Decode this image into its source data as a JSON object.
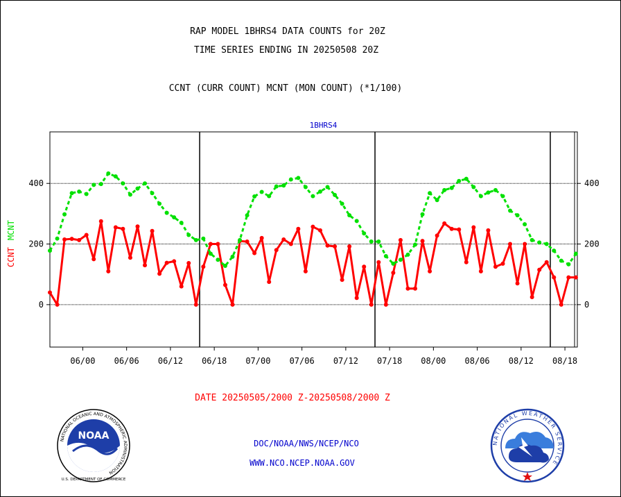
{
  "header": {
    "title_line1": "RAP MODEL 1BHRS4 DATA COUNTS for 20Z",
    "title_line2": "TIME SERIES ENDING IN 20250508 20Z",
    "subtitle": "CCNT (CURR COUNT) MCNT (MON COUNT) (*1/100)"
  },
  "footer": {
    "date_range": "DATE 20250505/2000 Z-20250508/2000 Z",
    "agency": "DOC/NOAA/NWS/NCEP/NCO",
    "website": "WWW.NCO.NCEP.NOAA.GOV"
  },
  "logos": {
    "noaa_text": "NOAA",
    "noaa_ring_text": "NATIONAL OCEANIC AND ATMOSPHERIC ADMINISTRATION",
    "noaa_bottom_text": "U.S. DEPARTMENT OF COMMERCE",
    "nws_ring_text": "NATIONAL WEATHER SERVICE"
  },
  "colors": {
    "ccnt": "#ff0000",
    "mcnt": "#00e000",
    "panel_title": "#0000cc",
    "footer_link": "#0000cc",
    "date_text": "#ff0000"
  },
  "chart_data": {
    "type": "line",
    "title": "1BHRS4",
    "ylabel_left_ccnt": "CCNT",
    "ylabel_left_mcnt": "MCNT",
    "ylim": [
      -140,
      570
    ],
    "yticks": [
      0,
      200,
      400
    ],
    "grid": "dotted horizontal at y ticks",
    "x_tick_labels": [
      "06/00",
      "06/06",
      "06/12",
      "06/18",
      "07/00",
      "07/06",
      "07/12",
      "07/18",
      "08/00",
      "08/06",
      "08/12",
      "08/18"
    ],
    "x_tick_hours": [
      28,
      34,
      40,
      46,
      52,
      58,
      64,
      70,
      76,
      82,
      88,
      94
    ],
    "xlim": [
      23.5,
      95.7
    ],
    "day_boundary_hours": [
      44,
      68,
      92
    ],
    "series": [
      {
        "name": "CCNT",
        "style": "solid",
        "x": [
          23.5,
          24.5,
          25.5,
          26.5,
          27.5,
          28.5,
          29.5,
          30.5,
          31.5,
          32.5,
          33.5,
          34.5,
          35.5,
          36.5,
          37.5,
          38.5,
          39.5,
          40.5,
          41.5,
          42.5,
          43.5,
          44.5,
          45.5,
          46.5,
          47.5,
          48.5,
          49.5,
          50.5,
          51.5,
          52.5,
          53.5,
          54.5,
          55.5,
          56.5,
          57.5,
          58.5,
          59.5,
          60.5,
          61.5,
          62.5,
          63.5,
          64.5,
          65.5,
          66.5,
          67.5,
          68.5,
          69.5,
          70.5,
          71.5,
          72.5,
          73.5,
          74.5,
          75.5,
          76.5,
          77.5,
          78.5,
          79.5,
          80.5,
          81.5,
          82.5,
          83.5,
          84.5,
          85.5,
          86.5,
          87.5,
          88.5,
          89.5,
          90.5,
          91.5,
          92.5,
          93.5,
          94.5,
          95.5
        ],
        "values": [
          40,
          0,
          215,
          217,
          213,
          230,
          150,
          275,
          110,
          255,
          250,
          155,
          258,
          130,
          243,
          102,
          138,
          143,
          60,
          137,
          0,
          125,
          200,
          200,
          65,
          0,
          210,
          208,
          170,
          220,
          75,
          180,
          215,
          200,
          250,
          110,
          257,
          245,
          195,
          192,
          82,
          192,
          22,
          125,
          0,
          140,
          0,
          105,
          213,
          53,
          53,
          210,
          110,
          228,
          268,
          250,
          248,
          140,
          255,
          110,
          245,
          125,
          135,
          200,
          70,
          200,
          25,
          115,
          140,
          90,
          0,
          90,
          90
        ]
      },
      {
        "name": "MCNT",
        "style": "dashed",
        "x": [
          23.5,
          24.5,
          25.5,
          26.5,
          27.5,
          28.5,
          29.5,
          30.5,
          31.5,
          32.5,
          33.5,
          34.5,
          35.5,
          36.5,
          37.5,
          38.5,
          39.5,
          40.5,
          41.5,
          42.5,
          43.5,
          44.5,
          45.5,
          46.5,
          47.5,
          48.5,
          49.5,
          50.5,
          51.5,
          52.5,
          53.5,
          54.5,
          55.5,
          56.5,
          57.5,
          58.5,
          59.5,
          60.5,
          61.5,
          62.5,
          63.5,
          64.5,
          65.5,
          66.5,
          67.5,
          68.5,
          69.5,
          70.5,
          71.5,
          72.5,
          73.5,
          74.5,
          75.5,
          76.5,
          77.5,
          78.5,
          79.5,
          80.5,
          81.5,
          82.5,
          83.5,
          84.5,
          85.5,
          86.5,
          87.5,
          88.5,
          89.5,
          90.5,
          91.5,
          92.5,
          93.5,
          94.5,
          95.5
        ],
        "values": [
          178,
          218,
          298,
          368,
          373,
          365,
          395,
          398,
          433,
          423,
          400,
          363,
          383,
          400,
          368,
          333,
          303,
          288,
          270,
          230,
          213,
          218,
          168,
          148,
          128,
          158,
          213,
          295,
          357,
          372,
          358,
          390,
          393,
          413,
          418,
          388,
          358,
          373,
          388,
          362,
          333,
          295,
          276,
          235,
          208,
          208,
          160,
          135,
          148,
          165,
          198,
          298,
          368,
          345,
          378,
          385,
          408,
          415,
          388,
          358,
          370,
          378,
          358,
          310,
          295,
          265,
          213,
          205,
          200,
          178,
          145,
          133,
          168
        ]
      }
    ]
  }
}
